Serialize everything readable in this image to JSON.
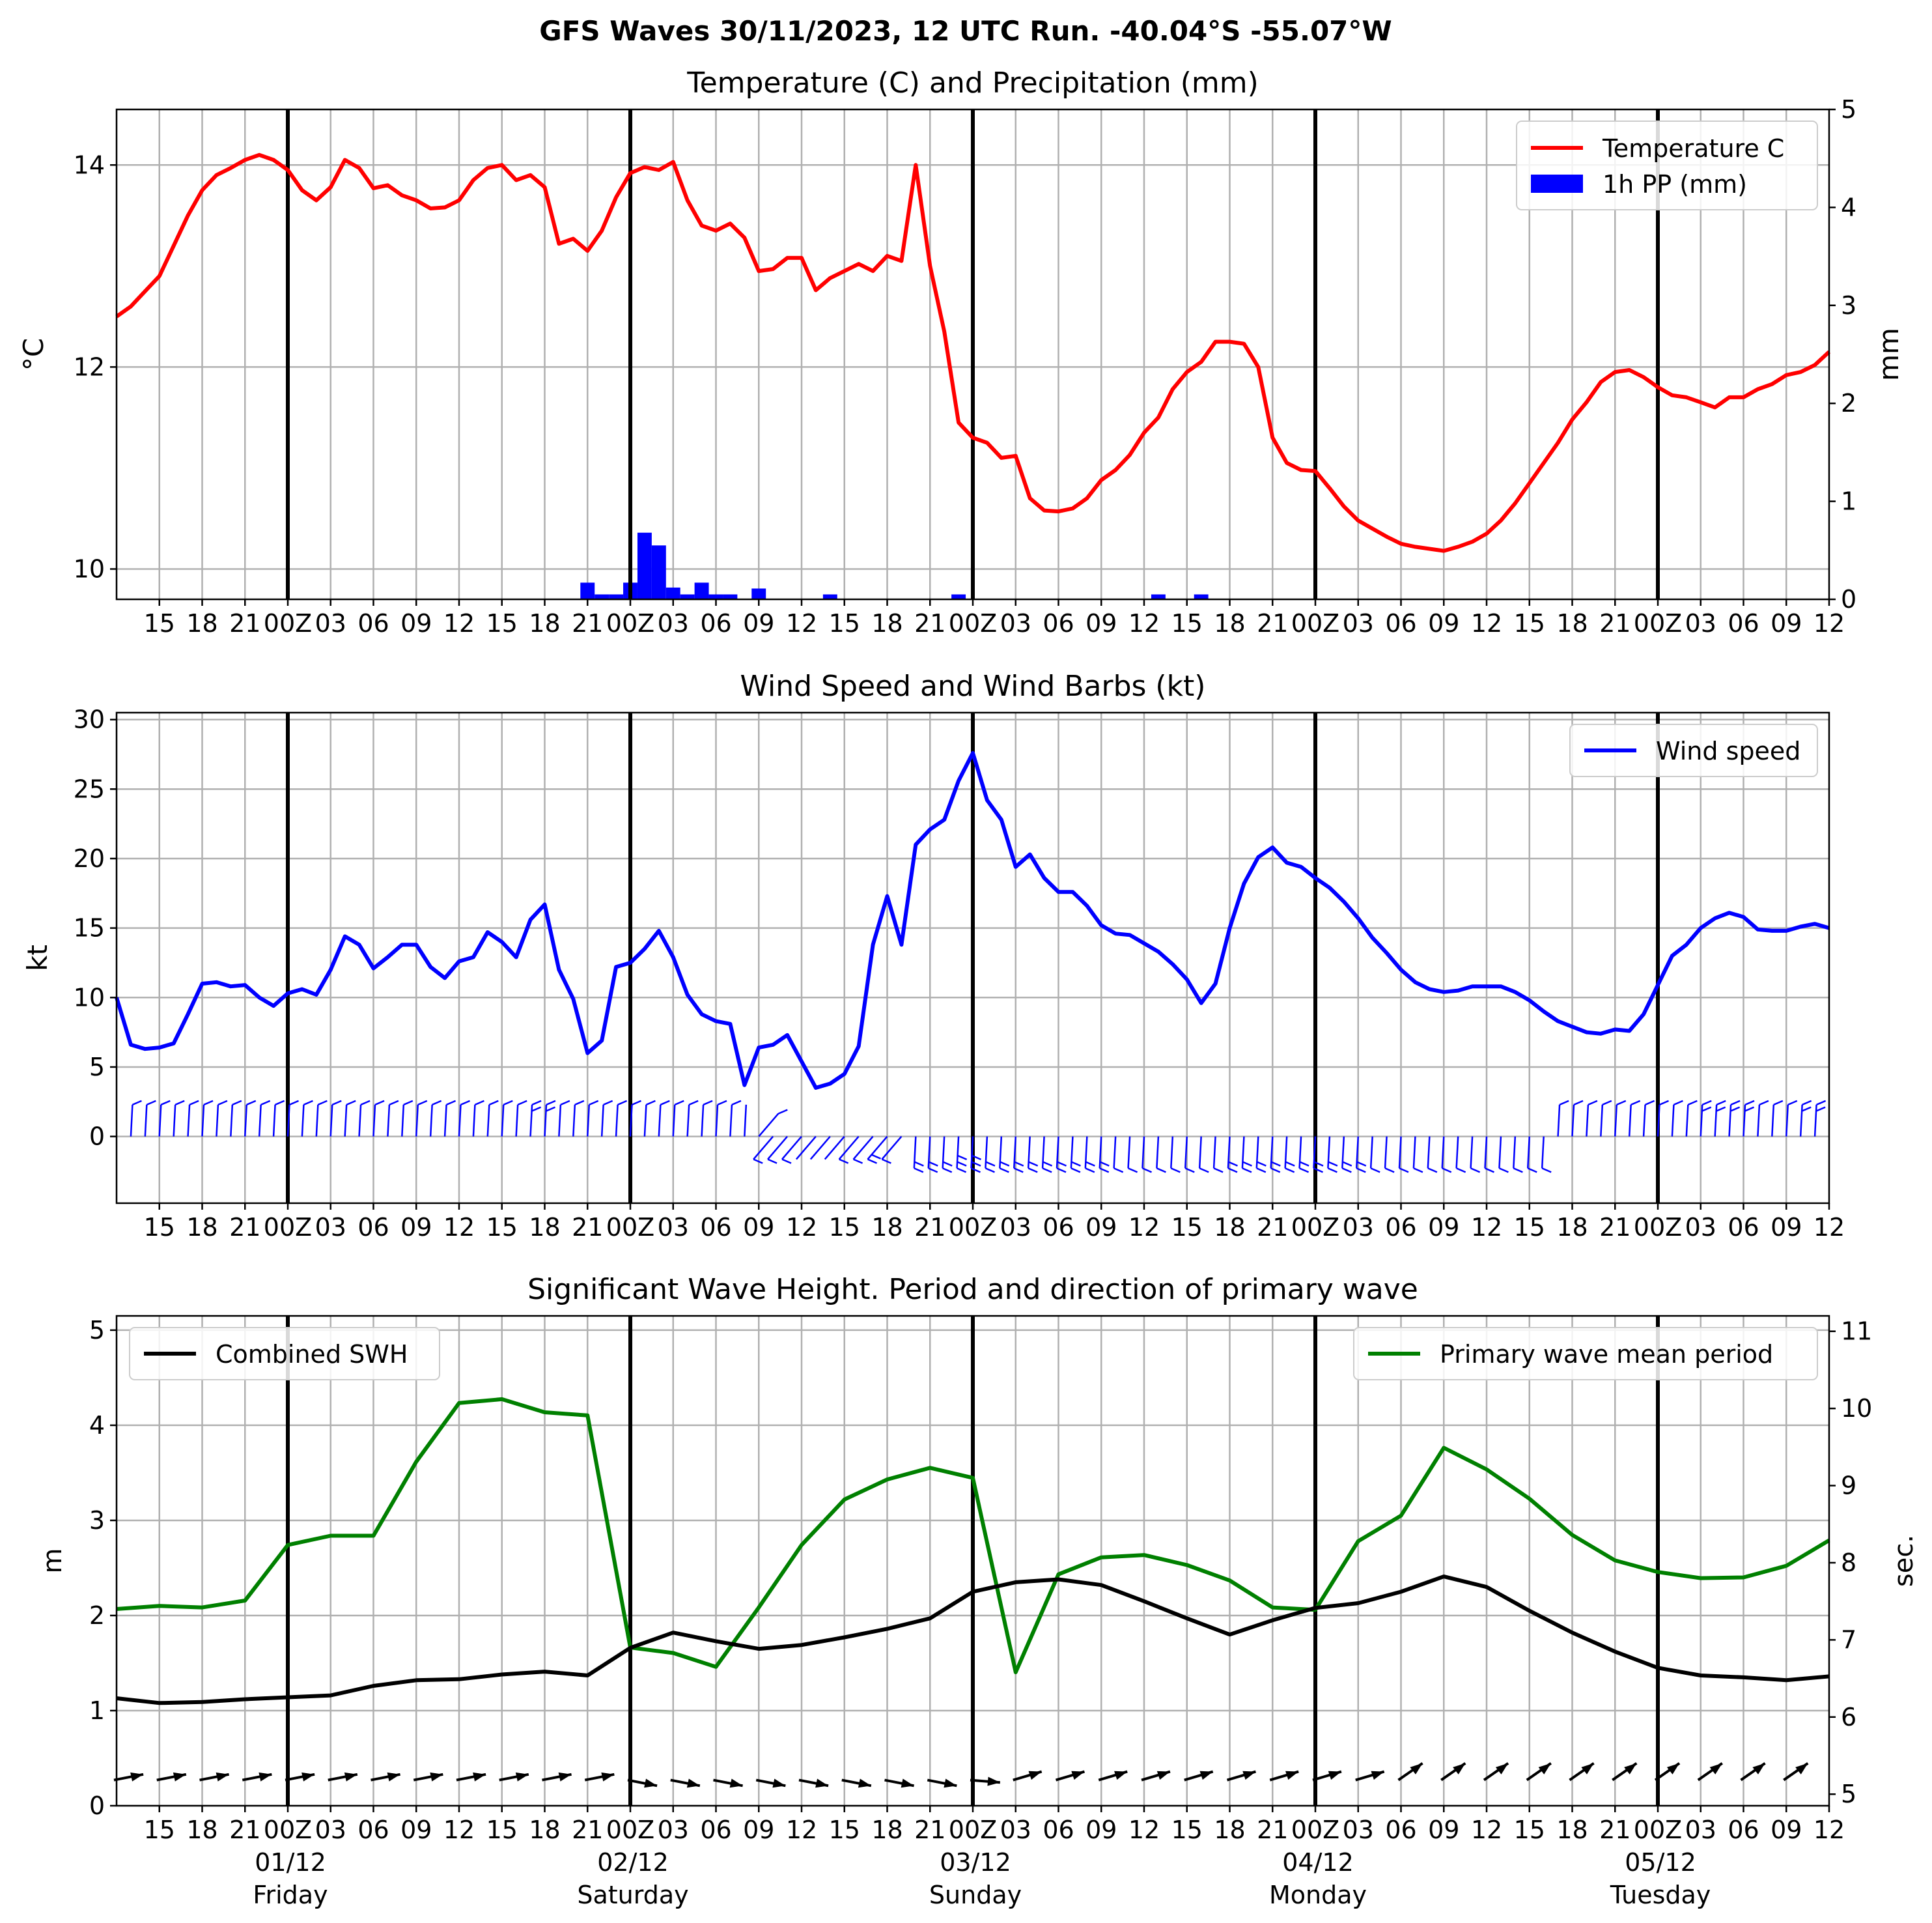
{
  "figure": {
    "suptitle": "GFS Waves 30/11/2023, 12 UTC Run. -40.04°S -55.07°W",
    "time_tick_labels": [
      "15",
      "18",
      "21",
      "00Z",
      "03",
      "06",
      "09",
      "12",
      "15",
      "18",
      "21",
      "00Z",
      "03",
      "06",
      "09",
      "12",
      "15",
      "18",
      "21",
      "00Z",
      "03",
      "06",
      "09",
      "12",
      "15",
      "18",
      "21",
      "00Z",
      "03",
      "06",
      "09",
      "12",
      "15",
      "18",
      "21",
      "00Z",
      "03",
      "06",
      "09",
      "12"
    ],
    "day_labels": [
      {
        "date": "01/12",
        "day": "Friday"
      },
      {
        "date": "02/12",
        "day": "Saturday"
      },
      {
        "date": "03/12",
        "day": "Sunday"
      },
      {
        "date": "04/12",
        "day": "Monday"
      },
      {
        "date": "05/12",
        "day": "Tuesday"
      }
    ],
    "x_range_hours_from_run": [
      0,
      120
    ],
    "midnight_hours": [
      12,
      36,
      60,
      84,
      108
    ],
    "colors": {
      "temperature": "#ff0000",
      "precip": "#0000ff",
      "wind": "#0000ff",
      "swh": "#000000",
      "period": "#008000",
      "grid": "#b0b0b0"
    }
  },
  "chart_data": [
    {
      "type": "line",
      "title": "Temperature (C) and Precipitation (mm)",
      "ylabel": "°C",
      "ylabel_right": "mm",
      "ylim": [
        9.7,
        14.55
      ],
      "yticks": [
        10,
        12,
        14
      ],
      "ylim_right": [
        0,
        5
      ],
      "yticks_right": [
        0,
        1,
        2,
        3,
        4,
        5
      ],
      "grid": true,
      "legend_position": "top-right",
      "legend": [
        "Temperature C",
        "1h PP (mm)"
      ],
      "series": [
        {
          "name": "Temperature C",
          "x_hours": [
            0,
            1,
            2,
            3,
            4,
            5,
            6,
            7,
            8,
            9,
            10,
            11,
            12,
            13,
            14,
            15,
            16,
            17,
            18,
            19,
            20,
            21,
            22,
            23,
            24,
            25,
            26,
            27,
            28,
            29,
            30,
            31,
            32,
            33,
            34,
            35,
            36,
            37,
            38,
            39,
            40,
            41,
            42,
            43,
            44,
            45,
            46,
            47,
            48,
            49,
            50,
            51,
            52,
            53,
            54,
            55,
            56,
            57,
            58,
            59,
            60,
            61,
            62,
            63,
            64,
            65,
            66,
            67,
            68,
            69,
            70,
            71,
            72,
            73,
            74,
            75,
            76,
            77,
            78,
            79,
            80,
            81,
            82,
            83,
            84,
            85,
            86,
            87,
            88,
            89,
            90,
            91,
            92,
            93,
            94,
            95,
            96,
            97,
            98,
            99,
            100,
            101,
            102,
            103,
            104,
            105,
            106,
            107,
            108,
            109,
            110,
            111,
            112,
            113,
            114,
            115,
            116,
            117,
            118,
            119,
            120
          ],
          "values": [
            12.5,
            12.6,
            12.75,
            12.9,
            13.2,
            13.5,
            13.75,
            13.9,
            13.97,
            14.05,
            14.1,
            14.05,
            13.95,
            13.75,
            13.65,
            13.78,
            14.05,
            13.97,
            13.77,
            13.8,
            13.7,
            13.65,
            13.57,
            13.58,
            13.65,
            13.85,
            13.97,
            14.0,
            13.85,
            13.9,
            13.78,
            13.22,
            13.27,
            13.15,
            13.35,
            13.68,
            13.92,
            13.98,
            13.95,
            14.03,
            13.65,
            13.4,
            13.35,
            13.42,
            13.28,
            12.95,
            12.97,
            13.08,
            13.08,
            12.76,
            12.88,
            12.95,
            13.02,
            12.95,
            13.1,
            13.05,
            14.0,
            13.0,
            12.35,
            11.45,
            11.3,
            11.25,
            11.1,
            11.12,
            10.7,
            10.58,
            10.57,
            10.6,
            10.7,
            10.88,
            10.98,
            11.13,
            11.35,
            11.5,
            11.78,
            11.95,
            12.05,
            12.25,
            12.25,
            12.23,
            12.0,
            11.3,
            11.05,
            10.98,
            10.97,
            10.8,
            10.62,
            10.48,
            10.4,
            10.32,
            10.25,
            10.22,
            10.2,
            10.18,
            10.22,
            10.27,
            10.35,
            10.48,
            10.65,
            10.85,
            11.05,
            11.25,
            11.48,
            11.65,
            11.85,
            11.95,
            11.97,
            11.9,
            11.8,
            11.72,
            11.7,
            11.65,
            11.6,
            11.7,
            11.7,
            11.78,
            11.83,
            11.92,
            11.95,
            12.02,
            12.15
          ]
        },
        {
          "name": "1h PP (mm)",
          "type": "bar",
          "x_hours": [
            33,
            34,
            35,
            36,
            37,
            38,
            39,
            40,
            41,
            42,
            43,
            45,
            50,
            59,
            73,
            76
          ],
          "values": [
            0.17,
            0.05,
            0.05,
            0.17,
            0.68,
            0.55,
            0.12,
            0.05,
            0.17,
            0.05,
            0.05,
            0.11,
            0.05,
            0.05,
            0.05,
            0.05
          ]
        }
      ]
    },
    {
      "type": "line",
      "title": "Wind Speed and Wind Barbs (kt)",
      "ylabel": "kt",
      "ylim": [
        -4.8,
        30.5
      ],
      "yticks": [
        0,
        5,
        10,
        15,
        20,
        25,
        30
      ],
      "grid": true,
      "legend_position": "top-right",
      "legend": [
        "Wind speed"
      ],
      "series": [
        {
          "name": "Wind speed",
          "x_hours": [
            0,
            1,
            2,
            3,
            4,
            5,
            6,
            7,
            8,
            9,
            10,
            11,
            12,
            13,
            14,
            15,
            16,
            17,
            18,
            19,
            20,
            21,
            22,
            23,
            24,
            25,
            26,
            27,
            28,
            29,
            30,
            31,
            32,
            33,
            34,
            35,
            36,
            37,
            38,
            39,
            40,
            41,
            42,
            43,
            44,
            45,
            46,
            47,
            48,
            49,
            50,
            51,
            52,
            53,
            54,
            55,
            56,
            57,
            58,
            59,
            60,
            61,
            62,
            63,
            64,
            65,
            66,
            67,
            68,
            69,
            70,
            71,
            72,
            73,
            74,
            75,
            76,
            77,
            78,
            79,
            80,
            81,
            82,
            83,
            84,
            85,
            86,
            87,
            88,
            89,
            90,
            91,
            92,
            93,
            94,
            95,
            96,
            97,
            98,
            99,
            100,
            101,
            102,
            103,
            104,
            105,
            106,
            107,
            108,
            109,
            110,
            111,
            112,
            113,
            114,
            115,
            116,
            117,
            118,
            119,
            120
          ],
          "values": [
            10,
            6.6,
            6.3,
            6.4,
            6.7,
            8.8,
            11.0,
            11.1,
            10.8,
            10.9,
            10.0,
            9.4,
            10.3,
            10.6,
            10.2,
            12.0,
            14.4,
            13.8,
            12.1,
            12.9,
            13.8,
            13.8,
            12.2,
            11.4,
            12.6,
            12.9,
            14.7,
            14.0,
            12.9,
            15.6,
            16.7,
            12.0,
            9.9,
            6.0,
            6.9,
            12.2,
            12.5,
            13.5,
            14.8,
            12.9,
            10.2,
            8.8,
            8.3,
            8.1,
            3.7,
            6.4,
            6.6,
            7.3,
            5.4,
            3.5,
            3.8,
            4.5,
            6.5,
            13.8,
            17.3,
            13.8,
            21.0,
            22.1,
            22.8,
            25.6,
            27.6,
            24.2,
            22.8,
            19.4,
            20.3,
            18.6,
            17.6,
            17.6,
            16.6,
            15.2,
            14.6,
            14.5,
            13.9,
            13.3,
            12.4,
            11.3,
            9.6,
            11.0,
            15.0,
            18.2,
            20.1,
            20.8,
            19.7,
            19.4,
            18.6,
            17.9,
            16.9,
            15.7,
            14.3,
            13.2,
            12.0,
            11.1,
            10.6,
            10.4,
            10.5,
            10.8,
            10.8,
            10.8,
            10.4,
            9.8,
            9.0,
            8.3,
            7.9,
            7.5,
            7.4,
            7.7,
            7.6,
            8.8,
            10.9,
            13.0,
            13.8,
            15.0,
            15.7,
            16.1,
            15.8,
            14.9,
            14.8,
            14.8,
            15.1,
            15.3,
            15.0
          ]
        }
      ]
    },
    {
      "type": "line",
      "title": "Significant Wave Height. Period and direction of primary wave",
      "ylabel": "m",
      "ylabel_right": "sec.",
      "ylim": [
        0,
        5.15
      ],
      "yticks": [
        0,
        1,
        2,
        3,
        4,
        5
      ],
      "ylim_right": [
        4.85,
        11.2
      ],
      "yticks_right": [
        5,
        6,
        7,
        8,
        9,
        10,
        11
      ],
      "grid": true,
      "legend": [
        "Combined SWH",
        "Primary wave mean period"
      ],
      "legend_position": [
        "top-left",
        "top-right"
      ],
      "series": [
        {
          "name": "Combined SWH",
          "x_hours": [
            0,
            3,
            6,
            9,
            12,
            15,
            18,
            21,
            24,
            27,
            30,
            33,
            36,
            39,
            42,
            45,
            48,
            51,
            54,
            57,
            60,
            63,
            66,
            69,
            72,
            75,
            78,
            81,
            84,
            87,
            90,
            93,
            96,
            99,
            102,
            105,
            108,
            111,
            114,
            117,
            120
          ],
          "values": [
            1.13,
            1.08,
            1.09,
            1.12,
            1.14,
            1.16,
            1.26,
            1.32,
            1.33,
            1.38,
            1.41,
            1.37,
            1.66,
            1.82,
            1.73,
            1.65,
            1.69,
            1.77,
            1.86,
            1.97,
            2.25,
            2.35,
            2.38,
            2.32,
            2.15,
            1.97,
            1.8,
            1.95,
            2.08,
            2.13,
            2.25,
            2.41,
            2.3,
            2.05,
            1.82,
            1.62,
            1.45,
            1.37,
            1.35,
            1.32,
            1.36
          ]
        },
        {
          "name": "Primary wave mean period",
          "x_hours": [
            0,
            3,
            6,
            9,
            12,
            15,
            18,
            21,
            24,
            27,
            30,
            33,
            36,
            39,
            42,
            45,
            48,
            51,
            54,
            57,
            60,
            63,
            66,
            69,
            72,
            75,
            78,
            81,
            84,
            87,
            90,
            93,
            96,
            99,
            102,
            105,
            108,
            111,
            114,
            117,
            120
          ],
          "values": [
            7.4,
            7.44,
            7.42,
            7.51,
            8.23,
            8.35,
            8.35,
            9.31,
            10.07,
            10.12,
            9.95,
            9.91,
            6.9,
            6.83,
            6.65,
            7.42,
            8.23,
            8.82,
            9.08,
            9.23,
            9.1,
            6.58,
            7.85,
            8.07,
            8.1,
            7.97,
            7.77,
            7.42,
            7.39,
            8.28,
            8.61,
            9.49,
            9.21,
            8.83,
            8.36,
            8.03,
            7.88,
            7.8,
            7.81,
            7.96,
            8.29
          ]
        },
        {
          "name": "Primary wave direction",
          "type": "arrows",
          "x_hours": [
            0,
            3,
            6,
            9,
            12,
            15,
            18,
            21,
            24,
            27,
            30,
            33,
            36,
            39,
            42,
            45,
            48,
            51,
            54,
            57,
            60,
            63,
            66,
            69,
            72,
            75,
            78,
            81,
            84,
            87,
            90,
            93,
            96,
            99,
            102,
            105,
            108,
            111,
            114,
            117,
            120
          ]
        }
      ]
    }
  ]
}
